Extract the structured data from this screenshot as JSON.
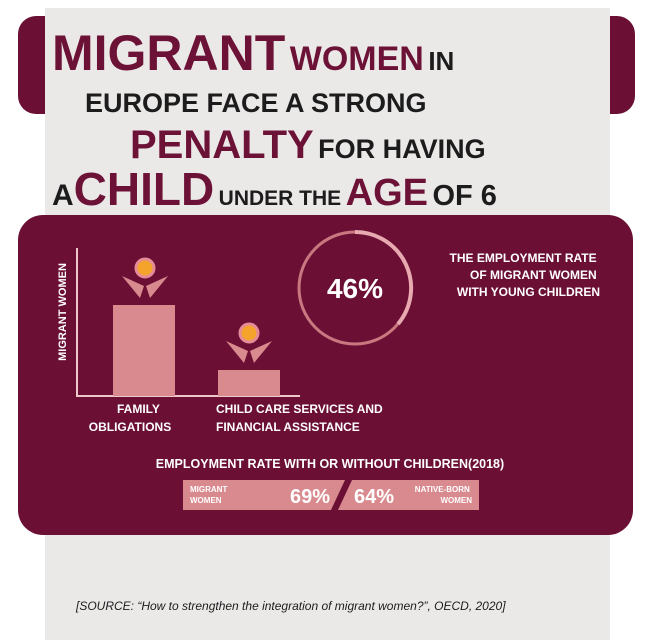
{
  "title": {
    "lines": [
      [
        "MIGRANT",
        "WOMEN",
        "IN"
      ],
      [
        "EUROPE FACE A STRONG"
      ],
      [
        "PENALTY",
        "FOR HAVING"
      ],
      [
        "A",
        "CHILD",
        "UNDER THE",
        "AGE",
        "OF 6"
      ]
    ]
  },
  "chart": {
    "y_label": "MIGRANT WOMEN",
    "bars": [
      {
        "label": [
          "FAMILY",
          "OBLIGATIONS"
        ]
      },
      {
        "label": [
          "CHILD CARE SERVICES AND",
          "FINANCIAL ASSISTANCE"
        ]
      }
    ]
  },
  "stat": {
    "value": "46%",
    "caption": [
      "THE EMPLOYMENT RATE",
      "OF MIGRANT WOMEN",
      "WITH YOUNG CHILDREN"
    ]
  },
  "comparison": {
    "title": "EMPLOYMENT RATE WITH OR WITHOUT CHILDREN(2018)",
    "left": {
      "label": [
        "MIGRANT",
        "WOMEN"
      ],
      "value": "69%"
    },
    "right": {
      "value": "64%",
      "label": [
        "NATIVE-BORN",
        "WOMEN"
      ]
    }
  },
  "source": "[SOURCE: “How to strengthen the integration of migrant women?”, OECD, 2020]"
}
